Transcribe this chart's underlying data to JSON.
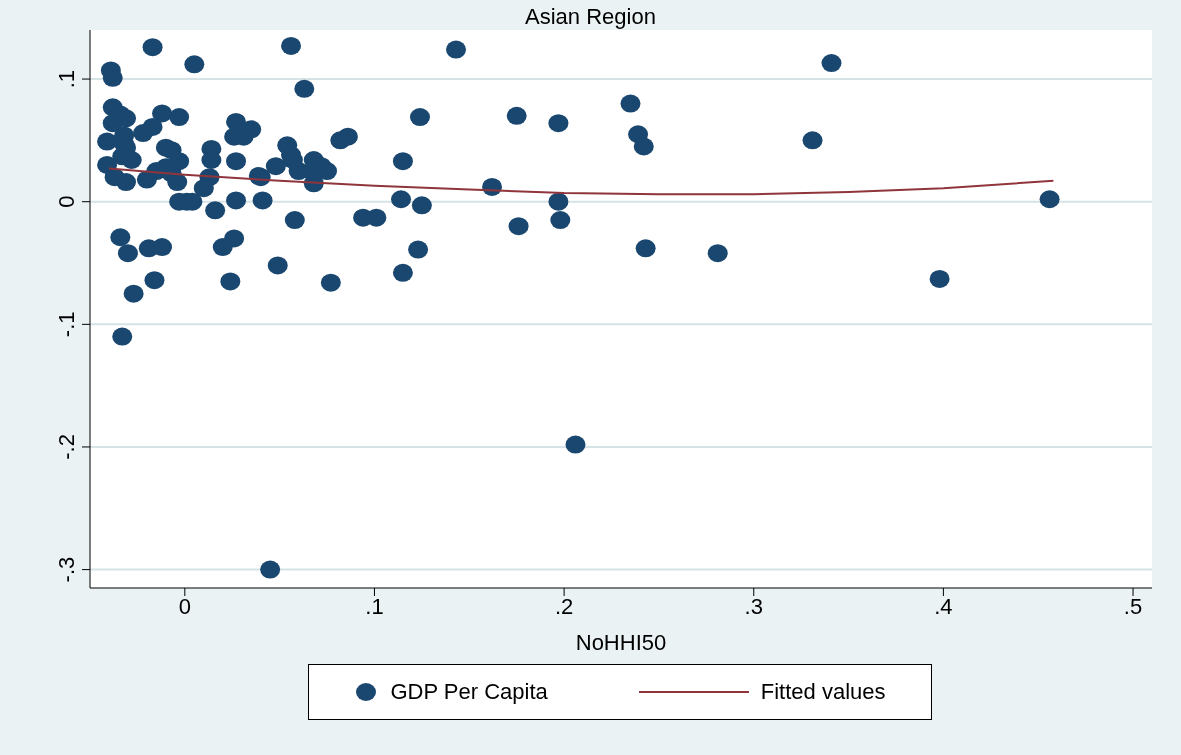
{
  "chart_data": {
    "type": "scatter",
    "title": "Asian Region",
    "xlabel": "NoHHI50",
    "xlim": [
      -0.05,
      0.51
    ],
    "ylim": [
      -0.315,
      0.14
    ],
    "xticks": [
      {
        "value": 0,
        "label": "0"
      },
      {
        "value": 0.1,
        "label": ".1"
      },
      {
        "value": 0.2,
        "label": ".2"
      },
      {
        "value": 0.3,
        "label": ".3"
      },
      {
        "value": 0.4,
        "label": ".4"
      },
      {
        "value": 0.5,
        "label": ".5"
      }
    ],
    "yticks": [
      {
        "value": -0.3,
        "label": "-.3"
      },
      {
        "value": -0.2,
        "label": "-.2"
      },
      {
        "value": -0.1,
        "label": "-.1"
      },
      {
        "value": 0,
        "label": "0"
      },
      {
        "value": 0.1,
        "label": ".1"
      }
    ],
    "grid": "y",
    "legend": "bottom",
    "marker": "circle",
    "series": [
      {
        "name": "GDP Per Capita",
        "color": "#1a476f",
        "x": [
          -0.039,
          -0.038,
          -0.017,
          0.005,
          0.056,
          0.143,
          0.341,
          0.063,
          0.235,
          0.175,
          0.124,
          0.197,
          0.239,
          0.242,
          0.331,
          0.115,
          0.162,
          0.197,
          0.198,
          0.176,
          0.243,
          0.281,
          0.398,
          0.456,
          0.206,
          0.045,
          0.114,
          0.125,
          0.094,
          0.101,
          0.123,
          0.115,
          0.077,
          0.049,
          0.024,
          0.026,
          0.02,
          0.041,
          0.027,
          0.016,
          0.058,
          0.086,
          0.082,
          0.048,
          0.068,
          0.068,
          0.072,
          0.075,
          0.06,
          0.067,
          0.054,
          0.056,
          0.057,
          0.04,
          -0.038,
          -0.034,
          -0.031,
          -0.038,
          -0.012,
          -0.003,
          -0.041,
          -0.032,
          -0.032,
          -0.031,
          -0.022,
          -0.017,
          0.027,
          0.026,
          0.031,
          0.035,
          -0.01,
          -0.007,
          0.014,
          0.014,
          0.027,
          -0.033,
          -0.028,
          -0.041,
          -0.003,
          -0.015,
          -0.01,
          -0.007,
          -0.004,
          -0.02,
          -0.037,
          -0.031,
          0.01,
          0.013,
          0.039,
          -0.003,
          0.001,
          0.004,
          -0.034,
          -0.03,
          -0.019,
          -0.012,
          -0.016,
          -0.027,
          -0.033
        ],
        "values": [
          0.107,
          0.101,
          0.126,
          0.112,
          0.127,
          0.124,
          0.113,
          0.092,
          0.08,
          0.07,
          0.069,
          0.064,
          0.055,
          0.045,
          0.05,
          0.033,
          0.012,
          0.0,
          -0.015,
          -0.02,
          -0.038,
          -0.042,
          -0.063,
          0.002,
          -0.198,
          -0.3,
          0.002,
          -0.003,
          -0.013,
          -0.013,
          -0.039,
          -0.058,
          -0.066,
          -0.052,
          -0.065,
          -0.03,
          -0.037,
          0.001,
          0.001,
          -0.007,
          -0.015,
          0.053,
          0.05,
          0.029,
          0.015,
          0.034,
          0.029,
          0.025,
          0.025,
          0.025,
          0.046,
          0.038,
          0.034,
          0.02,
          0.077,
          0.071,
          0.068,
          0.064,
          0.072,
          0.069,
          0.049,
          0.054,
          0.047,
          0.044,
          0.056,
          0.061,
          0.065,
          0.053,
          0.053,
          0.059,
          0.044,
          0.042,
          0.043,
          0.034,
          0.033,
          0.037,
          0.034,
          0.03,
          0.033,
          0.025,
          0.028,
          0.023,
          0.016,
          0.018,
          0.02,
          0.016,
          0.011,
          0.02,
          0.021,
          0.0,
          0.0,
          0.0,
          -0.029,
          -0.042,
          -0.038,
          -0.037,
          -0.064,
          -0.075,
          -0.11
        ]
      },
      {
        "name": "Fitted values",
        "type": "line",
        "color": "#90353b",
        "marker": "none",
        "x": [
          -0.04,
          0,
          0.05,
          0.1,
          0.15,
          0.2,
          0.25,
          0.3,
          0.35,
          0.4,
          0.458
        ],
        "values": [
          0.027,
          0.022,
          0.017,
          0.013,
          0.01,
          0.007,
          0.006,
          0.006,
          0.008,
          0.011,
          0.017
        ]
      }
    ]
  }
}
